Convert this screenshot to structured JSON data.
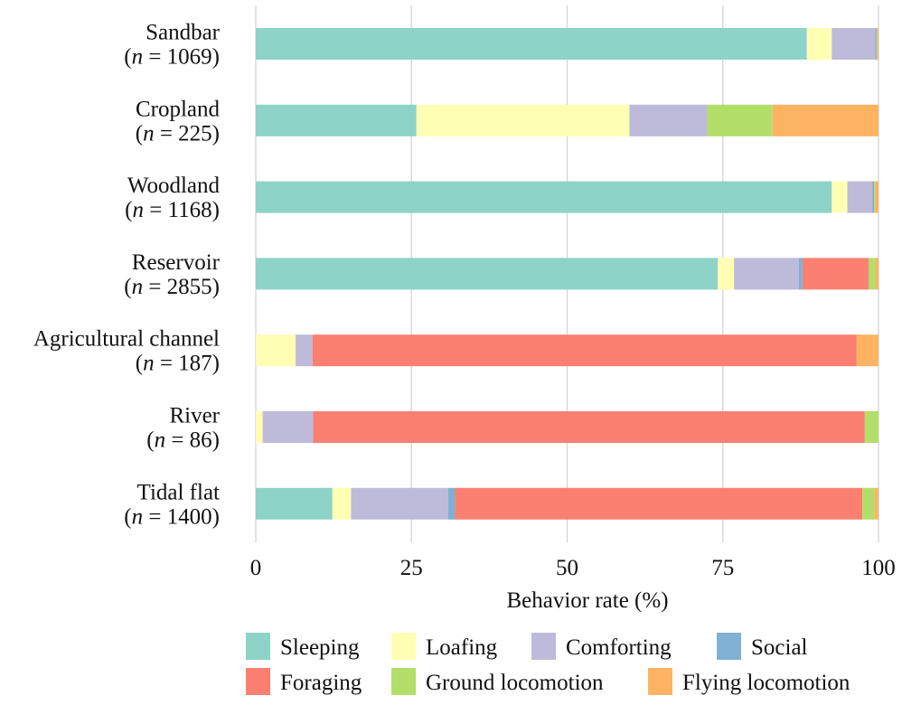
{
  "chart_data": {
    "type": "bar",
    "orientation": "horizontal",
    "stacked": true,
    "categories": [
      {
        "name": "Sandbar",
        "n_label": "n",
        "n_rest": " = 1069)"
      },
      {
        "name": "Cropland",
        "n_label": "n",
        "n_rest": " = 225)"
      },
      {
        "name": "Woodland",
        "n_label": "n",
        "n_rest": " = 1168)"
      },
      {
        "name": "Reservoir",
        "n_label": "n",
        "n_rest": " = 2855)"
      },
      {
        "name": "Agricultural channel",
        "n_label": "n",
        "n_rest": " = 187)"
      },
      {
        "name": "River",
        "n_label": "n",
        "n_rest": " = 86)"
      },
      {
        "name": "Tidal flat",
        "n_label": "n",
        "n_rest": " = 1400)"
      }
    ],
    "series": [
      {
        "name": "Sleeping",
        "color": "#8dd3c7",
        "values": [
          88.5,
          25.8,
          92.5,
          74.2,
          0,
          0,
          12.3
        ]
      },
      {
        "name": "Loafing",
        "color": "#ffffb3",
        "values": [
          4.0,
          34.2,
          2.5,
          2.6,
          6.4,
          1.1,
          3.0
        ]
      },
      {
        "name": "Comforting",
        "color": "#bebada",
        "values": [
          7.0,
          12.5,
          4.0,
          10.4,
          2.7,
          8.1,
          15.6
        ]
      },
      {
        "name": "Social",
        "color": "#80b1d3",
        "values": [
          0.2,
          0,
          0.3,
          0.6,
          0,
          0,
          1.1
        ]
      },
      {
        "name": "Foraging",
        "color": "#fb8072",
        "values": [
          0,
          0,
          0,
          10.6,
          87.4,
          88.6,
          65.4
        ]
      },
      {
        "name": "Ground locomotion",
        "color": "#b3de69",
        "values": [
          0.1,
          10.5,
          0.2,
          1.1,
          0,
          2.2,
          2.0
        ]
      },
      {
        "name": "Flying locomotion",
        "color": "#fdb462",
        "values": [
          0.2,
          17.0,
          0.5,
          0.5,
          3.5,
          0,
          0.6
        ]
      }
    ],
    "xlabel": "Behavior rate (%)",
    "xlim": [
      0,
      100
    ],
    "xticks": [
      0,
      25,
      50,
      75,
      100
    ],
    "grid": "vertical",
    "legend_position": "bottom"
  }
}
